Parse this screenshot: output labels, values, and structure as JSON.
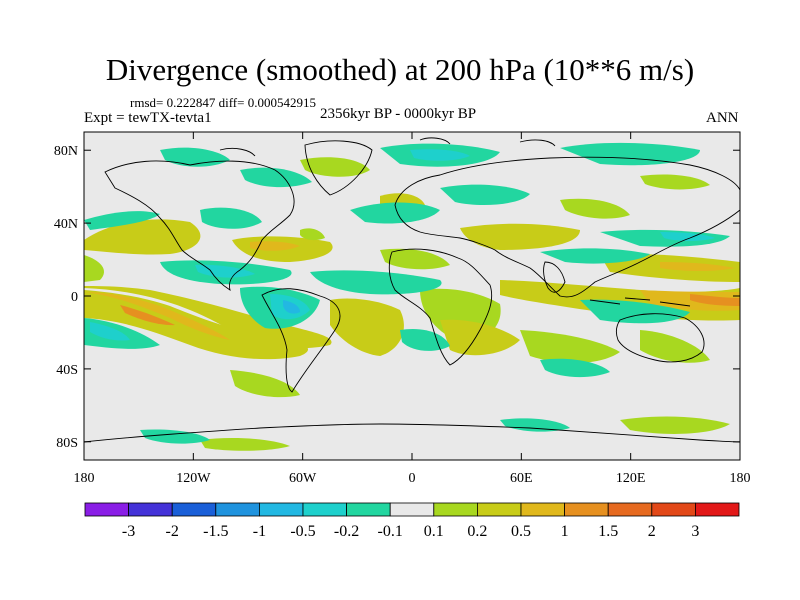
{
  "title": "Divergence (smoothed) at 200 hPa (10**6 m/s)",
  "stats": "rmsd= 0.222847 diff= 0.000542915",
  "experiment": "Expt = tewTX-tevta1",
  "period": "2356kyr BP - 0000kyr BP",
  "season": "ANN",
  "y_axis": {
    "ticks": [
      "80N",
      "40N",
      "0",
      "40S",
      "80S"
    ],
    "values": [
      80,
      40,
      0,
      -40,
      -80
    ]
  },
  "x_axis": {
    "ticks": [
      "180",
      "120W",
      "60W",
      "0",
      "60E",
      "120E",
      "180"
    ],
    "values": [
      -180,
      -120,
      -60,
      0,
      60,
      120,
      180
    ]
  },
  "colorbar": {
    "labels": [
      "-3",
      "-2",
      "-1.5",
      "-1",
      "-0.5",
      "-0.2",
      "-0.1",
      "0.1",
      "0.2",
      "0.5",
      "1",
      "1.5",
      "2",
      "3"
    ],
    "colors": [
      "#8a1ee6",
      "#4432d8",
      "#1a5fd8",
      "#1f93de",
      "#22b8e2",
      "#1ed0cc",
      "#22d6a0",
      "#e9e9e9",
      "#a8d820",
      "#c8cc18",
      "#e0b81c",
      "#e69020",
      "#e66a20",
      "#e24818",
      "#e21818"
    ]
  },
  "colors": {
    "land_line": "#000000",
    "neutral": "#e9e9e9"
  }
}
